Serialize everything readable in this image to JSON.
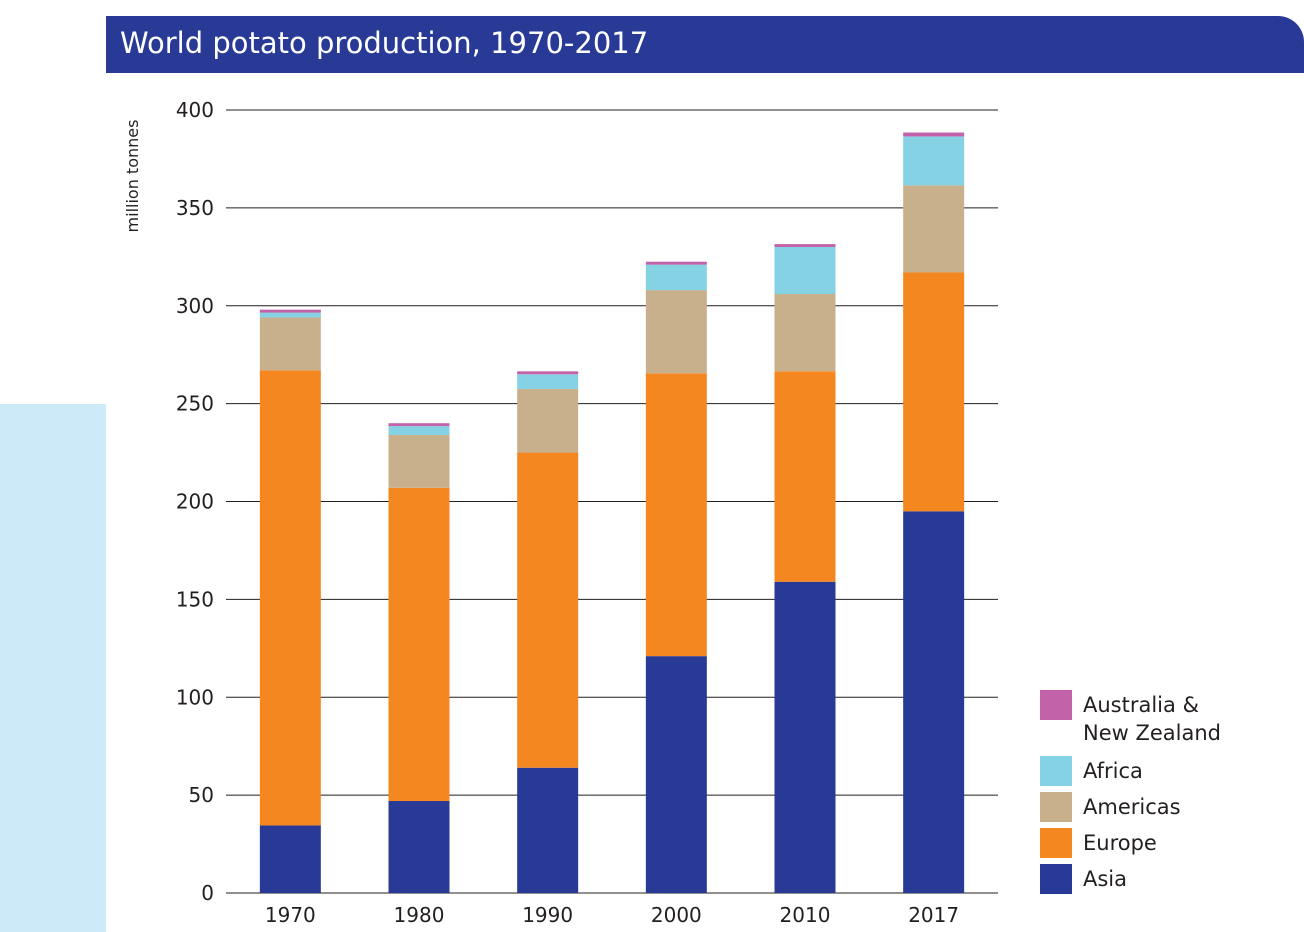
{
  "chart_data": {
    "type": "bar",
    "stacked": true,
    "title": "World potato production, 1970-2017",
    "ylabel": "million tonnes",
    "xlabel": "",
    "ylim": [
      0,
      400
    ],
    "yticks": [
      0,
      50,
      100,
      150,
      200,
      250,
      300,
      350,
      400
    ],
    "categories": [
      "1970",
      "1980",
      "1990",
      "2000",
      "2010",
      "2017"
    ],
    "series": [
      {
        "name": "Asia",
        "color": "#283a96",
        "values": [
          34.5,
          47,
          64,
          121,
          159,
          195
        ]
      },
      {
        "name": "Europe",
        "color": "#f58720",
        "values": [
          232.5,
          160,
          161,
          144.5,
          107.5,
          122
        ]
      },
      {
        "name": "Americas",
        "color": "#c8b08c",
        "values": [
          27,
          27,
          32.5,
          42.5,
          39.5,
          44.5
        ]
      },
      {
        "name": "Africa",
        "color": "#84d2e4",
        "values": [
          2.5,
          4.5,
          7.5,
          13,
          24,
          25
        ]
      },
      {
        "name": "Australia & New Zealand",
        "color": "#c263a9",
        "values": [
          1.5,
          1.5,
          1.5,
          1.5,
          1.5,
          2
        ]
      }
    ],
    "legend": {
      "placement": "bottom-right",
      "entries": [
        {
          "series": "Australia & New Zealand",
          "lines": [
            "Australia &",
            "New Zealand"
          ]
        },
        {
          "series": "Africa",
          "lines": [
            "Africa"
          ]
        },
        {
          "series": "Americas",
          "lines": [
            "Americas"
          ]
        },
        {
          "series": "Europe",
          "lines": [
            "Europe"
          ]
        },
        {
          "series": "Asia",
          "lines": [
            "Asia"
          ]
        }
      ]
    },
    "grid": true
  }
}
